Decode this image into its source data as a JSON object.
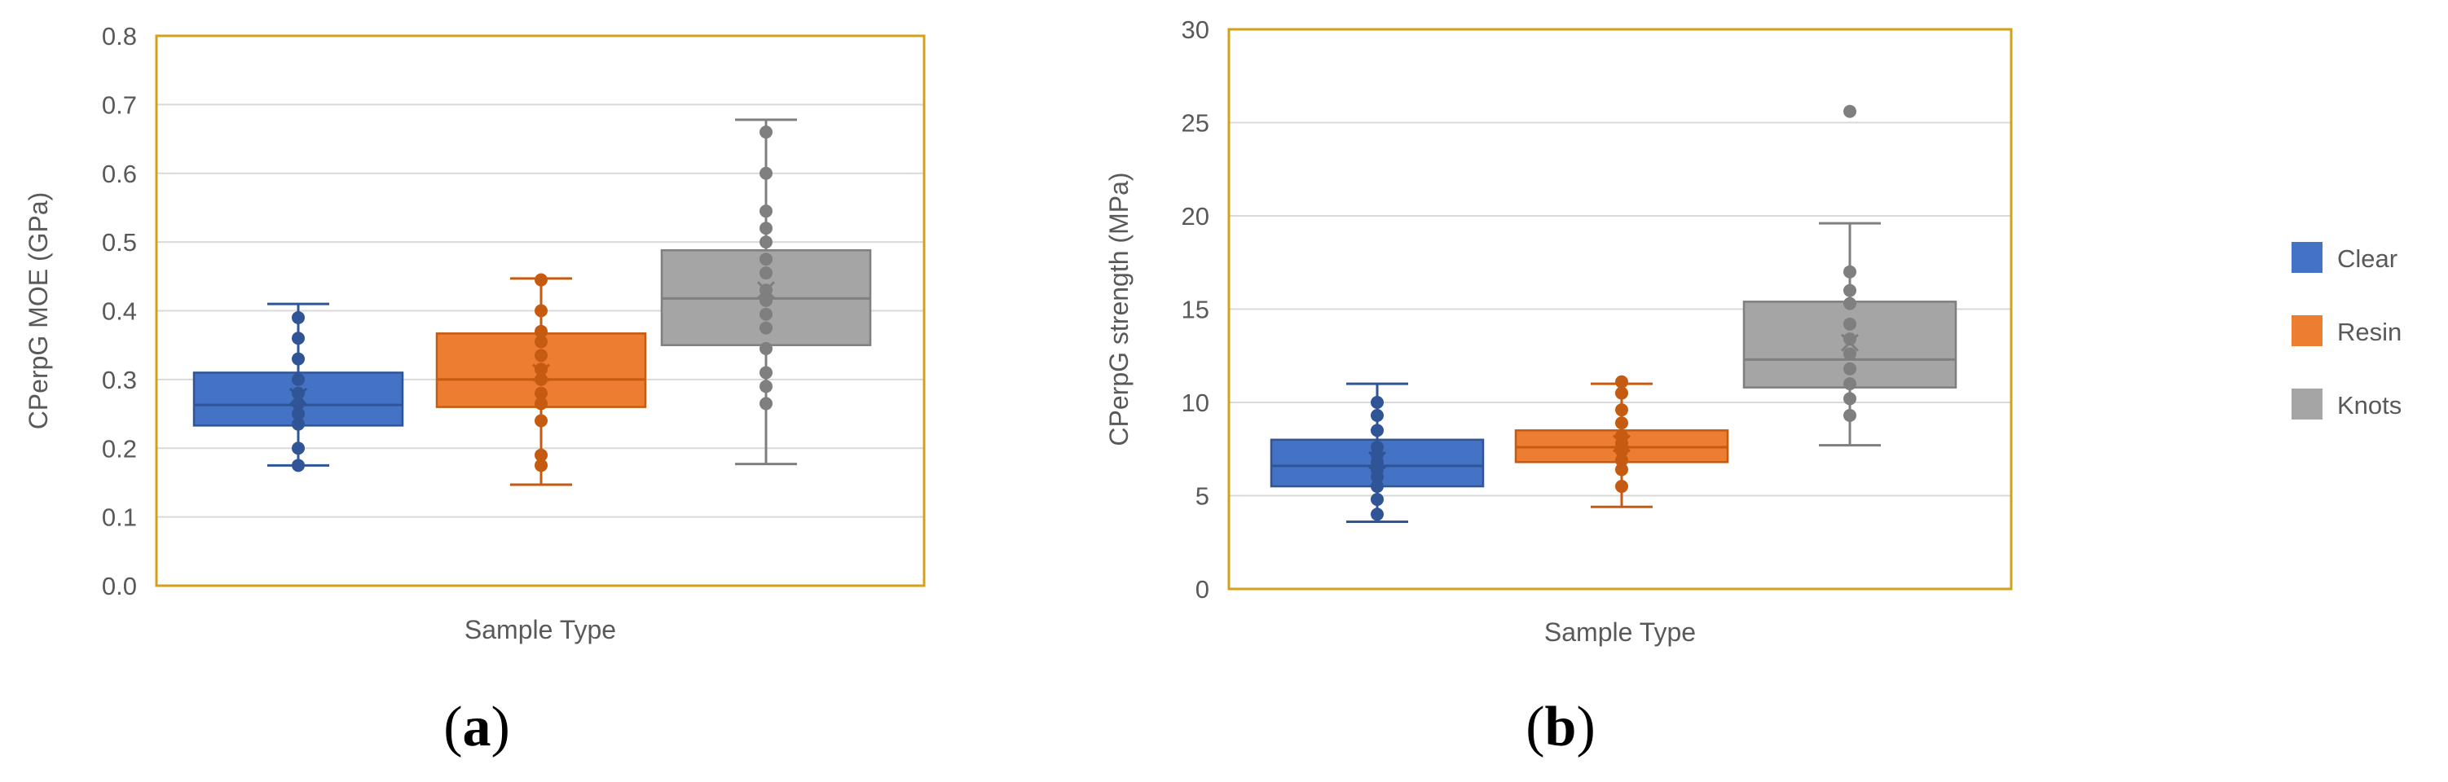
{
  "figure": {
    "legend": [
      {
        "name": "Clear",
        "color": "#4472c4"
      },
      {
        "name": "Resin",
        "color": "#ed7d31"
      },
      {
        "name": "Knots",
        "color": "#a5a5a5"
      }
    ],
    "panel_labels": [
      {
        "open": "(",
        "letter": "a",
        "close": ")"
      },
      {
        "open": "(",
        "letter": "b",
        "close": ")"
      }
    ]
  },
  "chart_data": [
    {
      "type": "box",
      "title": "",
      "xlabel": "Sample Type",
      "ylabel": "CPerpG MOE (GPa)",
      "ylim": [
        0,
        0.8
      ],
      "yticks": [
        "0.0",
        "0.1",
        "0.2",
        "0.3",
        "0.4",
        "0.5",
        "0.6",
        "0.7",
        "0.8"
      ],
      "ytick_values": [
        0,
        0.1,
        0.2,
        0.3,
        0.4,
        0.5,
        0.6,
        0.7,
        0.8
      ],
      "frame_color": "#d4a017",
      "series": [
        {
          "name": "Clear",
          "color": "#4472c4",
          "edge": "#2f5597",
          "min": 0.175,
          "q1": 0.233,
          "median": 0.263,
          "q3": 0.31,
          "max": 0.41,
          "mean": 0.275,
          "points": [
            0.175,
            0.2,
            0.235,
            0.25,
            0.265,
            0.28,
            0.3,
            0.33,
            0.36,
            0.39
          ]
        },
        {
          "name": "Resin",
          "color": "#ed7d31",
          "edge": "#c55a11",
          "min": 0.147,
          "q1": 0.26,
          "median": 0.3,
          "q3": 0.367,
          "max": 0.447,
          "mean": 0.31,
          "points": [
            0.175,
            0.19,
            0.24,
            0.265,
            0.28,
            0.3,
            0.315,
            0.335,
            0.355,
            0.37,
            0.4,
            0.445
          ]
        },
        {
          "name": "Knots",
          "color": "#a5a5a5",
          "edge": "#7f7f7f",
          "min": 0.177,
          "q1": 0.35,
          "median": 0.418,
          "q3": 0.488,
          "max": 0.678,
          "mean": 0.43,
          "points": [
            0.265,
            0.29,
            0.31,
            0.345,
            0.375,
            0.395,
            0.415,
            0.43,
            0.455,
            0.475,
            0.5,
            0.52,
            0.545,
            0.6,
            0.66
          ]
        }
      ]
    },
    {
      "type": "box",
      "title": "",
      "xlabel": "Sample Type",
      "ylabel": "CPerpG strength (MPa)",
      "ylim": [
        0,
        30
      ],
      "yticks": [
        "0",
        "5",
        "10",
        "15",
        "20",
        "25",
        "30"
      ],
      "ytick_values": [
        0,
        5,
        10,
        15,
        20,
        25,
        30
      ],
      "frame_color": "#d4a017",
      "series": [
        {
          "name": "Clear",
          "color": "#4472c4",
          "edge": "#2f5597",
          "min": 3.6,
          "q1": 5.5,
          "median": 6.6,
          "q3": 8.0,
          "max": 11.0,
          "mean": 6.9,
          "points": [
            4.0,
            4.8,
            5.5,
            6.0,
            6.4,
            6.8,
            7.2,
            7.6,
            8.5,
            9.3,
            10.0
          ]
        },
        {
          "name": "Resin",
          "color": "#ed7d31",
          "edge": "#c55a11",
          "min": 4.4,
          "q1": 6.8,
          "median": 7.6,
          "q3": 8.5,
          "max": 11.0,
          "mean": 7.8,
          "points": [
            5.5,
            6.4,
            6.9,
            7.4,
            7.8,
            8.2,
            8.9,
            9.6,
            10.5,
            11.1
          ]
        },
        {
          "name": "Knots",
          "color": "#a5a5a5",
          "edge": "#7f7f7f",
          "min": 7.7,
          "q1": 10.8,
          "median": 12.3,
          "q3": 15.4,
          "max": 19.6,
          "mean": 13.2,
          "points": [
            9.3,
            10.2,
            11.0,
            11.8,
            12.6,
            13.4,
            14.2,
            15.3,
            16.0,
            17.0,
            25.6
          ]
        }
      ]
    }
  ]
}
